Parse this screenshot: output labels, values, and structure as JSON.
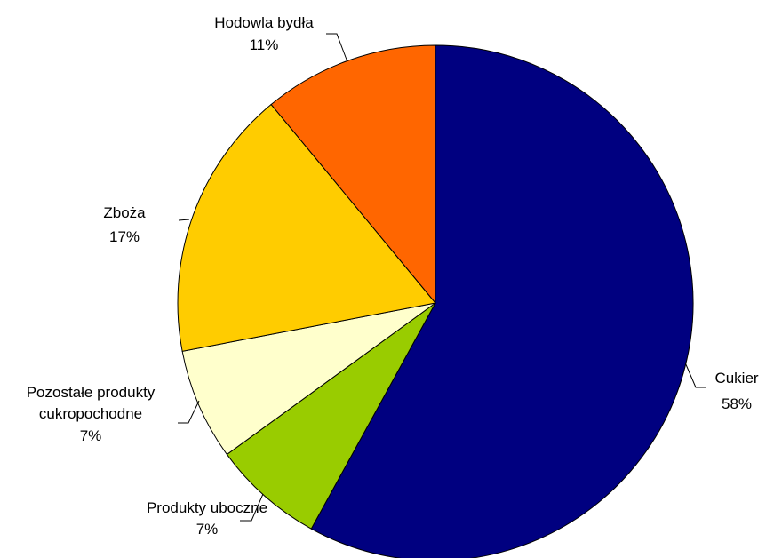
{
  "chart_data": {
    "type": "pie",
    "title": "",
    "slices": [
      {
        "name": "Cukier",
        "value": 58,
        "label": "58%",
        "color": "#000080"
      },
      {
        "name": "Produkty uboczne",
        "value": 7,
        "label": "7%",
        "color": "#99CC00"
      },
      {
        "name": "Pozostałe produkty cukropochodne",
        "name_lines": [
          "Pozostałe produkty",
          "cukropochodne"
        ],
        "value": 7,
        "label": "7%",
        "color": "#FFFFCC"
      },
      {
        "name": "Zboża",
        "value": 17,
        "label": "17%",
        "color": "#FFCC00"
      },
      {
        "name": "Hodowla bydła",
        "value": 11,
        "label": "11%",
        "color": "#FF6600"
      }
    ],
    "start_angle": "12 o'clock",
    "direction": "clockwise",
    "legend": "none"
  }
}
